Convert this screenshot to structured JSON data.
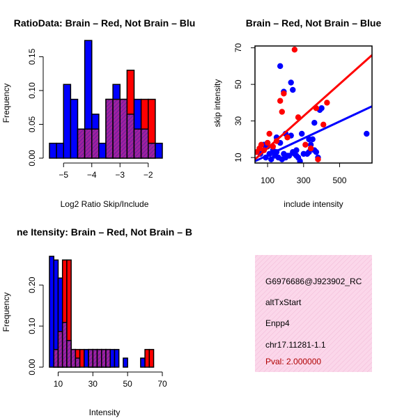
{
  "colors": {
    "brain": "#ff0000",
    "not_brain": "#0000ff",
    "overlap": "#a020a0",
    "overlap_hatch": "#6a2da0",
    "info_bg": "#fbd7ea",
    "pval_text": "#b00000"
  },
  "chart_data": [
    {
      "type": "bar",
      "title": "RatioData: Brain – Red, Not Brain – Blu",
      "xlabel": "Log2 Ratio Skip/Include",
      "ylabel": "Frequency",
      "xlim": [
        -5.5,
        -1.5
      ],
      "ylim": [
        0,
        0.17
      ],
      "bin_width": 0.25,
      "xticks": [
        -5,
        -4,
        -3,
        -2
      ],
      "yticks": [
        0.0,
        0.05,
        0.1,
        0.15
      ],
      "ytick_labels": [
        "0.00",
        "0.05",
        "0.10",
        "0.15"
      ],
      "bin_starts": [
        -5.5,
        -5.25,
        -5.0,
        -4.75,
        -4.5,
        -4.25,
        -4.0,
        -3.75,
        -3.5,
        -3.25,
        -3.0,
        -2.75,
        -2.5,
        -2.25,
        -2.0,
        -1.75
      ],
      "series": [
        {
          "name": "Not Brain",
          "color": "blue",
          "values": [
            0.022,
            0.022,
            0.109,
            0.087,
            0.043,
            0.174,
            0.065,
            0.022,
            0.087,
            0.109,
            0.087,
            0.065,
            0.087,
            0.043,
            0.022,
            0.022
          ]
        },
        {
          "name": "Brain",
          "color": "red",
          "values": [
            0,
            0,
            0,
            0,
            0.043,
            0.043,
            0.043,
            0,
            0.087,
            0.087,
            0.087,
            0.13,
            0.043,
            0.087,
            0.087,
            0
          ]
        }
      ]
    },
    {
      "type": "scatter",
      "title": "Brain – Red, Not Brain – Blue",
      "xlabel": "include intensity",
      "ylabel": "skip intensity",
      "xlim": [
        30,
        680
      ],
      "ylim": [
        7,
        71
      ],
      "xticks": [
        100,
        300,
        500
      ],
      "yticks": [
        10,
        30,
        50,
        70
      ],
      "series": [
        {
          "name": "Not Brain",
          "color": "blue",
          "x": [
            60,
            80,
            90,
            100,
            110,
            120,
            130,
            140,
            150,
            160,
            170,
            180,
            190,
            200,
            200,
            210,
            220,
            230,
            240,
            250,
            260,
            270,
            280,
            290,
            300,
            320,
            330,
            340,
            350,
            360,
            370,
            380,
            390,
            400,
            170,
            230,
            240,
            190,
            330,
            650,
            100,
            150,
            260,
            360
          ],
          "y": [
            12,
            17,
            10,
            16,
            12,
            9,
            14,
            11,
            13,
            10,
            60,
            9,
            12,
            23,
            10,
            11,
            11,
            51,
            13,
            12,
            14,
            10,
            8,
            23,
            12,
            12,
            13,
            17,
            20,
            14,
            13,
            10,
            36,
            37,
            18,
            22,
            47,
            46,
            20,
            23,
            18,
            21,
            11,
            29
          ]
        },
        {
          "name": "Brain",
          "color": "red",
          "x": [
            40,
            55,
            65,
            80,
            100,
            110,
            130,
            150,
            170,
            180,
            190,
            210,
            250,
            270,
            310,
            340,
            370,
            380,
            410,
            430
          ],
          "y": [
            13,
            15,
            17,
            14,
            18,
            23,
            16,
            19,
            41,
            35,
            45,
            21,
            69,
            32,
            17,
            15,
            37,
            9,
            28,
            40
          ]
        }
      ],
      "fit_lines": [
        {
          "name": "Brain",
          "color": "red",
          "x": [
            30,
            680
          ],
          "y": [
            9,
            66
          ]
        },
        {
          "name": "Not Brain",
          "color": "blue",
          "x": [
            30,
            680
          ],
          "y": [
            8,
            38
          ]
        }
      ]
    },
    {
      "type": "bar",
      "title": "ne Itensity: Brain – Red, Not Brain – B",
      "xlabel": "Intensity",
      "ylabel": "Frequency",
      "xlim": [
        5,
        70
      ],
      "ylim": [
        0,
        0.28
      ],
      "bin_width": 2.5,
      "xticks": [
        10,
        30,
        50,
        70
      ],
      "yticks": [
        0.0,
        0.1,
        0.2
      ],
      "ytick_labels": [
        "0.00",
        "0.10",
        "0.20"
      ],
      "bin_starts": [
        5,
        7.5,
        10,
        12.5,
        15,
        17.5,
        20,
        22.5,
        25,
        27.5,
        30,
        32.5,
        35,
        37.5,
        40,
        42.5,
        45,
        47.5,
        50,
        52.5,
        55,
        57.5,
        60,
        62.5,
        65,
        67.5
      ],
      "series": [
        {
          "name": "Not Brain",
          "color": "blue",
          "values": [
            0.27,
            0.261,
            0.217,
            0.109,
            0.065,
            0.043,
            0.022,
            0,
            0.043,
            0.043,
            0.043,
            0.043,
            0.043,
            0.043,
            0.043,
            0.043,
            0,
            0.022,
            0,
            0,
            0,
            0.022,
            0,
            0,
            0,
            0
          ]
        },
        {
          "name": "Brain",
          "color": "red",
          "values": [
            0,
            0.043,
            0.087,
            0.261,
            0.261,
            0.043,
            0.043,
            0.043,
            0,
            0.043,
            0.043,
            0.043,
            0.043,
            0.043,
            0,
            0,
            0,
            0,
            0,
            0,
            0,
            0,
            0.043,
            0.043,
            0,
            0
          ]
        }
      ]
    }
  ],
  "info_box": {
    "lines": [
      "G6976686@J923902_RC",
      "altTxStart",
      "Enpp4",
      "chr17.11281-1.1"
    ],
    "pval": "Pval: 2.000000"
  }
}
